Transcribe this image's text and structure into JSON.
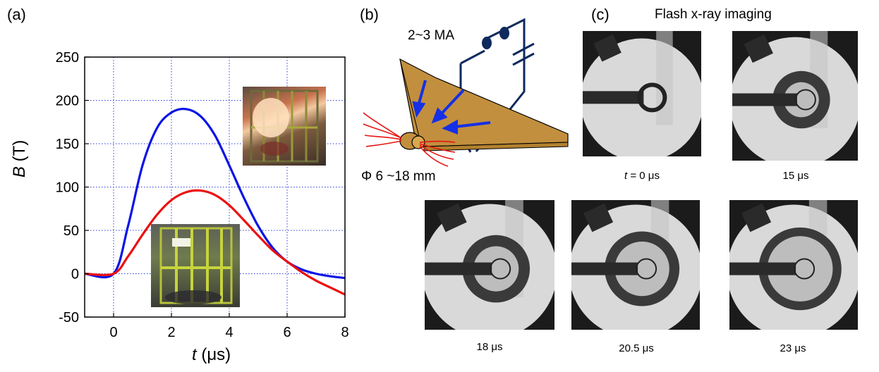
{
  "panels": {
    "a": {
      "label": "(a)"
    },
    "b": {
      "label": "(b)",
      "current": "2~3 MA",
      "diameter": "Φ 6 ~18 mm"
    },
    "c": {
      "label": "(c)",
      "title": "Flash x-ray imaging"
    }
  },
  "chart_data": {
    "type": "line",
    "xlabel_var": "t",
    "xlabel_unit": " (μs)",
    "ylabel_var": "B",
    "ylabel_unit": " (T)",
    "xlim": [
      -1,
      8
    ],
    "ylim": [
      -50,
      250
    ],
    "xticks": [
      0,
      2,
      4,
      6,
      8
    ],
    "yticks": [
      -50,
      0,
      50,
      100,
      150,
      200,
      250
    ],
    "grid": true,
    "series": [
      {
        "color": "#0a14e6",
        "x": [
          -1,
          0,
          0.5,
          1,
          1.5,
          2,
          2.5,
          3,
          3.5,
          4,
          4.5,
          5,
          5.5,
          6,
          6.5,
          7,
          7.5,
          8
        ],
        "y": [
          0,
          0,
          55,
          125,
          168,
          186,
          190,
          182,
          160,
          125,
          88,
          55,
          30,
          14,
          5,
          0,
          -3,
          -5
        ]
      },
      {
        "color": "#ec1010",
        "x": [
          -1,
          0,
          0.5,
          1,
          1.5,
          2,
          2.5,
          3,
          3.5,
          4,
          4.5,
          5,
          5.5,
          6,
          6.5,
          7,
          7.5,
          8
        ],
        "y": [
          0,
          0,
          20,
          45,
          68,
          85,
          94,
          96,
          91,
          79,
          62,
          44,
          27,
          14,
          2,
          -8,
          -16,
          -24
        ]
      }
    ]
  },
  "xray_frames": [
    {
      "time_var": "t",
      "time_rest": " = 0 μs",
      "stage": 0
    },
    {
      "time_var": "",
      "time_rest": "15 μs",
      "stage": 1
    },
    {
      "time_var": "",
      "time_rest": "18 μs",
      "stage": 2
    },
    {
      "time_var": "",
      "time_rest": "20.5 μs",
      "stage": 3
    },
    {
      "time_var": "",
      "time_rest": "23 μs",
      "stage": 4
    }
  ]
}
